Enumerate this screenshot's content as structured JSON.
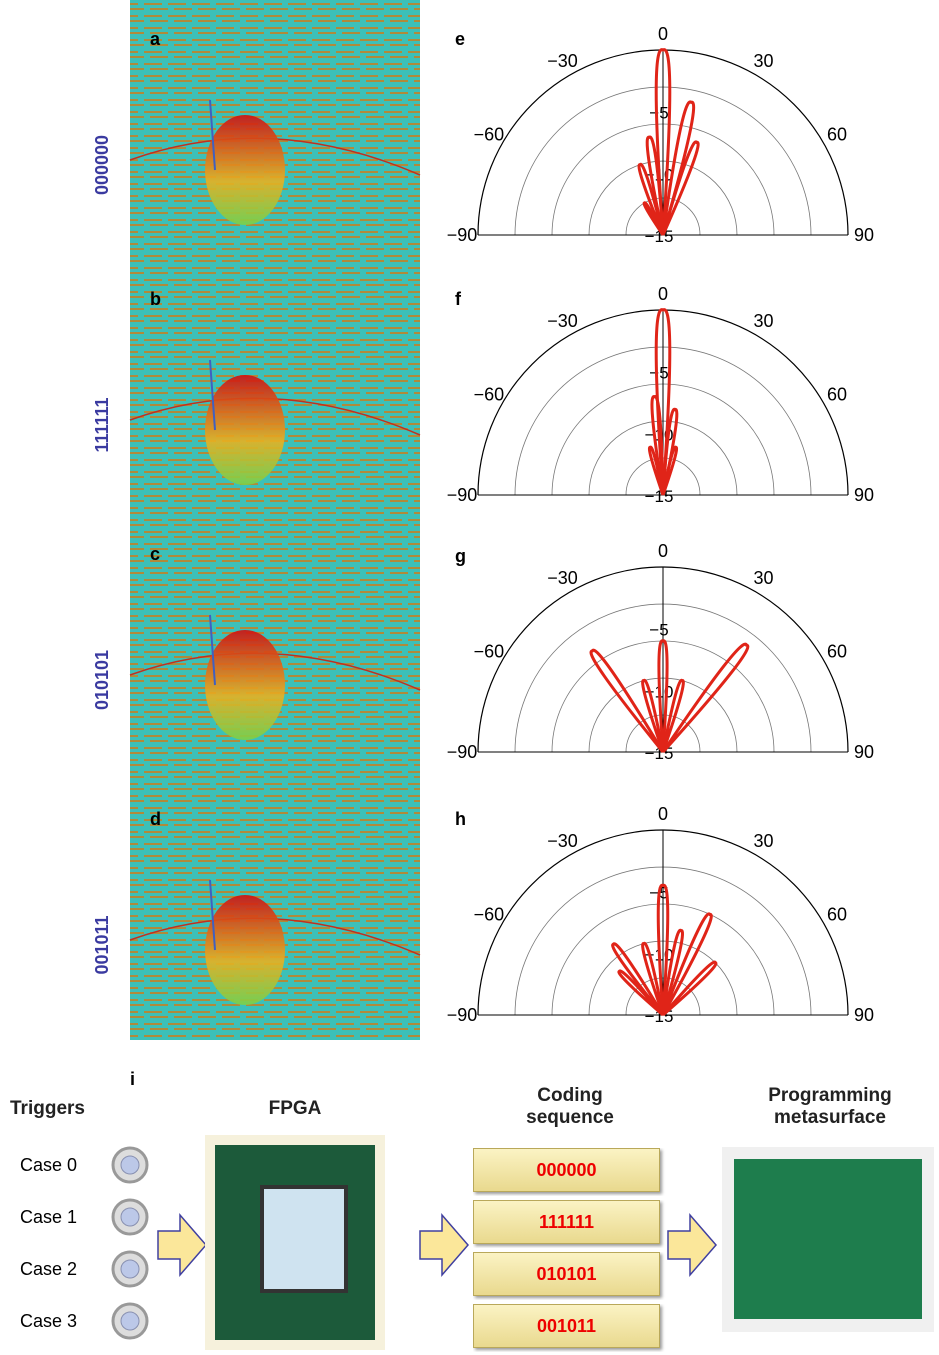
{
  "left_panels": [
    {
      "letter": "a",
      "code": "000000"
    },
    {
      "letter": "b",
      "code": "111111"
    },
    {
      "letter": "c",
      "code": "010101"
    },
    {
      "letter": "d",
      "code": "001011"
    }
  ],
  "polar_panels": [
    {
      "letter": "e",
      "lobes": [
        {
          "angle": 0,
          "gain": 0
        },
        {
          "angle": 12,
          "gain": -4
        },
        {
          "angle": -8,
          "gain": -7
        },
        {
          "angle": 20,
          "gain": -7
        },
        {
          "angle": -18,
          "gain": -9
        },
        {
          "angle": -30,
          "gain": -12
        }
      ]
    },
    {
      "letter": "f",
      "lobes": [
        {
          "angle": 0,
          "gain": 0
        },
        {
          "angle": -5,
          "gain": -7
        },
        {
          "angle": 8,
          "gain": -8
        },
        {
          "angle": -15,
          "gain": -11
        },
        {
          "angle": 15,
          "gain": -11
        }
      ]
    },
    {
      "letter": "g",
      "lobes": [
        {
          "angle": -35,
          "gain": -5
        },
        {
          "angle": 38,
          "gain": -4
        },
        {
          "angle": 0,
          "gain": -6
        },
        {
          "angle": -15,
          "gain": -9
        },
        {
          "angle": 15,
          "gain": -9
        }
      ]
    },
    {
      "letter": "h",
      "lobes": [
        {
          "angle": 0,
          "gain": -4.5
        },
        {
          "angle": 25,
          "gain": -6
        },
        {
          "angle": -35,
          "gain": -8
        },
        {
          "angle": 12,
          "gain": -8
        },
        {
          "angle": -15,
          "gain": -9
        },
        {
          "angle": 45,
          "gain": -9
        },
        {
          "angle": -45,
          "gain": -10
        }
      ]
    }
  ],
  "angle_labels": [
    "0",
    "−30",
    "30",
    "−60",
    "60",
    "−90",
    "90"
  ],
  "level_labels": [
    "−5",
    "−10",
    "−15"
  ],
  "bottom": {
    "letter": "i",
    "triggers": "Triggers",
    "cases": [
      "Case 0",
      "Case 1",
      "Case 2",
      "Case 3"
    ],
    "fpga": "FPGA",
    "coding": "Coding sequence",
    "codes": [
      "000000",
      "111111",
      "010101",
      "001011"
    ],
    "meta": "Programming metasurface"
  }
}
